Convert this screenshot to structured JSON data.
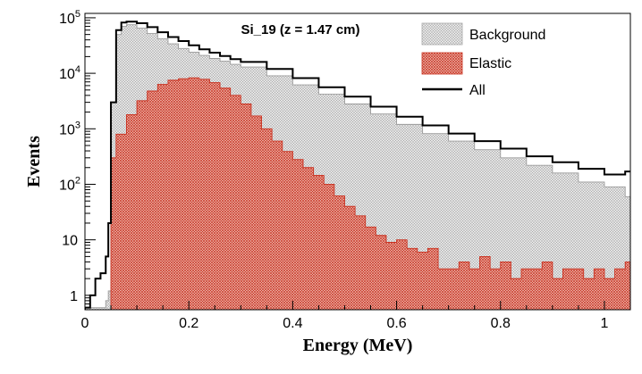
{
  "chart_data": {
    "type": "area",
    "title": "Si_19 (z = 1.47 cm)",
    "xlabel": "Energy (MeV)",
    "ylabel": "Events",
    "xlim": [
      0,
      1.05
    ],
    "ylim": [
      0.55,
      120000
    ],
    "y_scale": "log",
    "grid": false,
    "legend_position": "top-right",
    "x_ticks": [
      0,
      0.2,
      0.4,
      0.6,
      0.8,
      1
    ],
    "x_tick_labels": [
      "0",
      "0.2",
      "0.4",
      "0.6",
      "0.8",
      "1"
    ],
    "y_ticks": [
      1,
      10,
      100,
      1000,
      10000,
      100000
    ],
    "y_tick_labels": [
      {
        "base": "1",
        "exp": ""
      },
      {
        "base": "10",
        "exp": ""
      },
      {
        "base": "10",
        "exp": "2"
      },
      {
        "base": "10",
        "exp": "3"
      },
      {
        "base": "10",
        "exp": "4"
      },
      {
        "base": "10",
        "exp": "5"
      }
    ],
    "series": [
      {
        "name": "Background",
        "style": "hatched-fill",
        "color": "#9a9a9a",
        "x": [
          0.0,
          0.01,
          0.02,
          0.03,
          0.04,
          0.045,
          0.05,
          0.06,
          0.07,
          0.08,
          0.1,
          0.12,
          0.14,
          0.16,
          0.18,
          0.2,
          0.22,
          0.24,
          0.26,
          0.28,
          0.3,
          0.35,
          0.4,
          0.45,
          0.5,
          0.55,
          0.6,
          0.65,
          0.7,
          0.75,
          0.8,
          0.85,
          0.9,
          0.95,
          1.0,
          1.04,
          1.05
        ],
        "y": [
          0.6,
          0.6,
          0.6,
          0.6,
          0.8,
          1.2,
          3000,
          50000,
          70000,
          75000,
          65000,
          52000,
          42000,
          34000,
          28000,
          24000,
          21000,
          18500,
          16500,
          14500,
          13000,
          9000,
          6200,
          4200,
          2800,
          1850,
          1200,
          820,
          600,
          420,
          300,
          220,
          160,
          110,
          90,
          60,
          60
        ]
      },
      {
        "name": "Elastic",
        "style": "hatched-fill",
        "color": "#c8301f",
        "x": [
          0.05,
          0.06,
          0.08,
          0.1,
          0.12,
          0.14,
          0.16,
          0.18,
          0.2,
          0.22,
          0.24,
          0.26,
          0.28,
          0.3,
          0.32,
          0.34,
          0.36,
          0.38,
          0.4,
          0.42,
          0.44,
          0.46,
          0.48,
          0.5,
          0.52,
          0.54,
          0.56,
          0.58,
          0.6,
          0.62,
          0.64,
          0.66,
          0.68,
          0.7,
          0.72,
          0.74,
          0.76,
          0.78,
          0.8,
          0.82,
          0.84,
          0.86,
          0.88,
          0.9,
          0.92,
          0.94,
          0.96,
          0.98,
          1.0,
          1.02,
          1.04
        ],
        "y": [
          300,
          800,
          1800,
          3200,
          4800,
          6300,
          7500,
          8000,
          8300,
          7800,
          6800,
          5400,
          4000,
          2800,
          1700,
          1000,
          600,
          390,
          280,
          200,
          145,
          100,
          62,
          40,
          27,
          17,
          12,
          9,
          10,
          7,
          6,
          7,
          3,
          3,
          4,
          3,
          5,
          3,
          4,
          2,
          3,
          3,
          4,
          2,
          3,
          3,
          2,
          3,
          2,
          3,
          4
        ]
      },
      {
        "name": "All",
        "style": "black-outline",
        "color": "#000000",
        "x": [
          0.0,
          0.01,
          0.02,
          0.03,
          0.04,
          0.045,
          0.05,
          0.06,
          0.07,
          0.08,
          0.1,
          0.12,
          0.14,
          0.16,
          0.18,
          0.2,
          0.22,
          0.24,
          0.26,
          0.28,
          0.3,
          0.35,
          0.4,
          0.45,
          0.5,
          0.55,
          0.6,
          0.65,
          0.7,
          0.75,
          0.8,
          0.85,
          0.9,
          0.95,
          1.0,
          1.04,
          1.05
        ],
        "y": [
          0.6,
          1,
          2,
          2.5,
          5,
          20,
          3000,
          60000,
          82000,
          85000,
          80000,
          68000,
          55000,
          45000,
          38000,
          32000,
          27000,
          23500,
          20500,
          18000,
          16000,
          12000,
          8200,
          5600,
          3800,
          2500,
          1650,
          1150,
          820,
          600,
          440,
          320,
          250,
          190,
          150,
          170,
          170
        ]
      }
    ]
  }
}
